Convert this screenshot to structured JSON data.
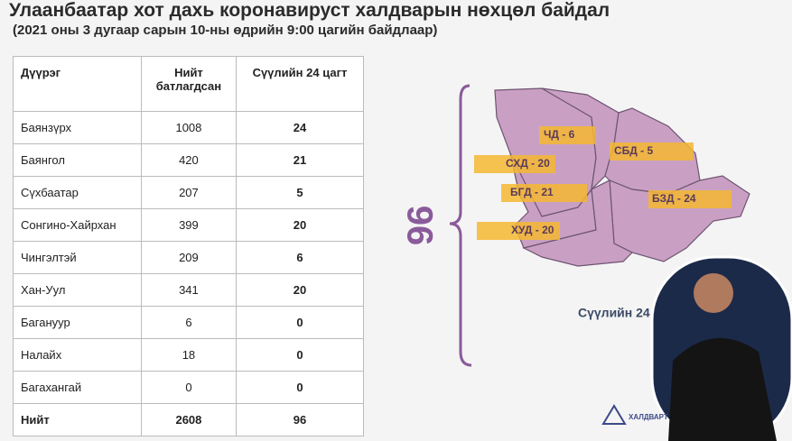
{
  "header": {
    "title": "Улаанбаатар хот дахь коронавируст халдварын нөхцөл байдал",
    "subtitle": "(2021 оны 3 дугаар сарын 10-ны өдрийн 9:00 цагийн байдлаар)"
  },
  "table": {
    "columns": [
      "Дүүрэг",
      "Нийт батлагдсан",
      "Сүүлийн 24 цагт"
    ],
    "rows": [
      [
        "Баянзүрх",
        1008,
        24
      ],
      [
        "Баянгол",
        420,
        21
      ],
      [
        "Сүхбаатар",
        207,
        5
      ],
      [
        "Сонгино-Хайрхан",
        399,
        20
      ],
      [
        "Чингэлтэй",
        209,
        6
      ],
      [
        "Хан-Уул",
        341,
        20
      ],
      [
        "Багануур",
        6,
        0
      ],
      [
        "Налайх",
        18,
        0
      ],
      [
        "Багахангай",
        0,
        0
      ],
      [
        "Нийт",
        2608,
        96
      ]
    ]
  },
  "map": {
    "total": 96,
    "labels": [
      "ЧД - 6",
      "СБД - 5",
      "СХД - 20",
      "БГД - 21",
      "БЗД - 24",
      "ХУД - 20"
    ],
    "caption": "Сүүлийн 24"
  },
  "logo": {
    "text": "ХАЛДВАРТ"
  }
}
